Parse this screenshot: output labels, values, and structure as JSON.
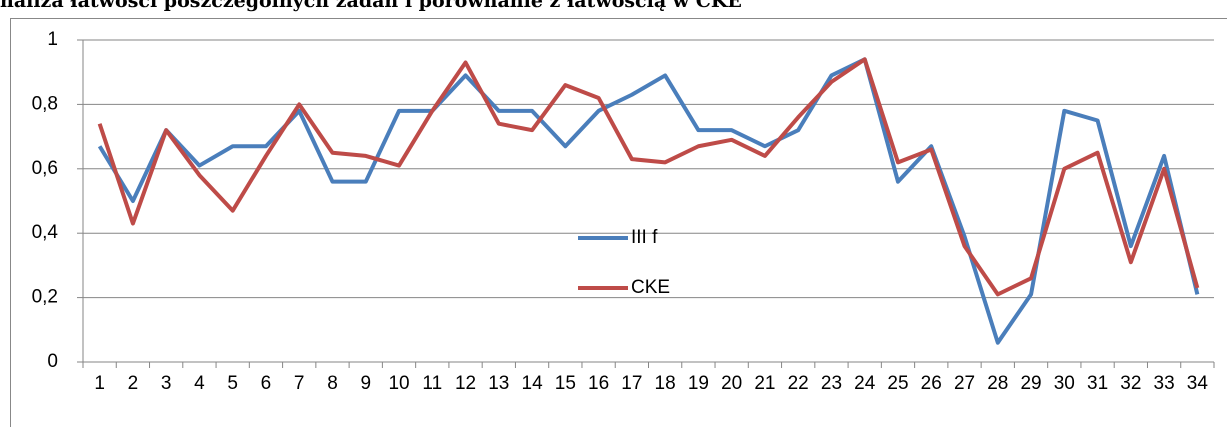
{
  "chart_data": {
    "type": "line",
    "title": "naliza łatwości poszczególnych zadań i porównanie z łatwością w CKE",
    "categories": [
      "1",
      "2",
      "3",
      "4",
      "5",
      "6",
      "7",
      "8",
      "9",
      "10",
      "11",
      "12",
      "13",
      "14",
      "15",
      "16",
      "17",
      "18",
      "19",
      "20",
      "21",
      "22",
      "23",
      "24",
      "25",
      "26",
      "27",
      "28",
      "29",
      "30",
      "31",
      "32",
      "33",
      "34"
    ],
    "series": [
      {
        "name": "III f",
        "color": "#4a7ebb",
        "values": [
          0.67,
          0.5,
          0.72,
          0.61,
          0.67,
          0.67,
          0.78,
          0.56,
          0.56,
          0.78,
          0.78,
          0.89,
          0.78,
          0.78,
          0.67,
          0.78,
          0.83,
          0.89,
          0.72,
          0.72,
          0.67,
          0.72,
          0.89,
          0.94,
          0.56,
          0.67,
          0.39,
          0.06,
          0.21,
          0.78,
          0.75,
          0.36,
          0.64,
          0.21
        ]
      },
      {
        "name": "CKE",
        "color": "#be4b48",
        "values": [
          0.74,
          0.43,
          0.72,
          0.58,
          0.47,
          0.64,
          0.8,
          0.65,
          0.64,
          0.61,
          0.78,
          0.93,
          0.74,
          0.72,
          0.86,
          0.82,
          0.63,
          0.62,
          0.67,
          0.69,
          0.64,
          0.76,
          0.87,
          0.94,
          0.62,
          0.66,
          0.36,
          0.21,
          0.26,
          0.6,
          0.65,
          0.31,
          0.6,
          0.23
        ]
      }
    ],
    "ylim": [
      0,
      1
    ],
    "yticks": [
      0,
      {
        "value": 0.2,
        "label": "0,2"
      },
      {
        "value": 0.4,
        "label": "0,4"
      },
      {
        "value": 0.6,
        "label": "0,6"
      },
      {
        "value": 0.8,
        "label": "0,8"
      },
      1
    ],
    "grid": true
  }
}
